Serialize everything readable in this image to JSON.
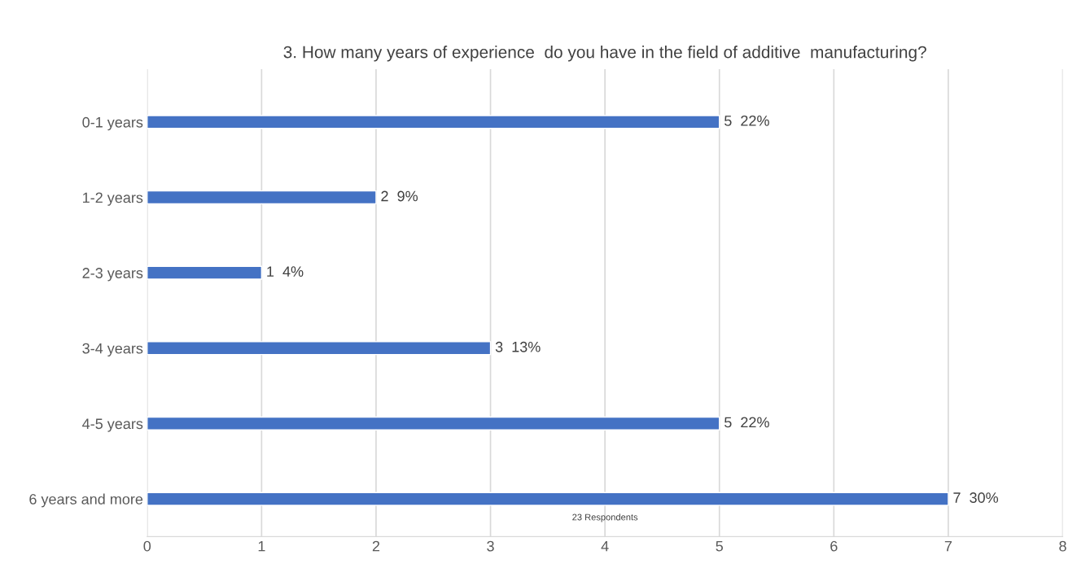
{
  "chart_data": {
    "type": "bar",
    "orientation": "horizontal",
    "title": "3. How many years of experience  do you have in the field of additive  manufacturing?",
    "categories": [
      "0-1 years",
      "1-2 years",
      "2-3 years",
      "3-4 years",
      "4-5 years",
      "6 years and more"
    ],
    "values": [
      5,
      2,
      1,
      3,
      5,
      7
    ],
    "value_labels": [
      "5  22%",
      "2  9%",
      "1  4%",
      "3  13%",
      "5  22%",
      "7  30%"
    ],
    "color": "#4472c4",
    "xlim": [
      0,
      8
    ],
    "xticks": [
      0,
      1,
      2,
      3,
      4,
      5,
      6,
      7,
      8
    ],
    "grid": "x",
    "annotations": [
      "23 Respondents"
    ]
  }
}
